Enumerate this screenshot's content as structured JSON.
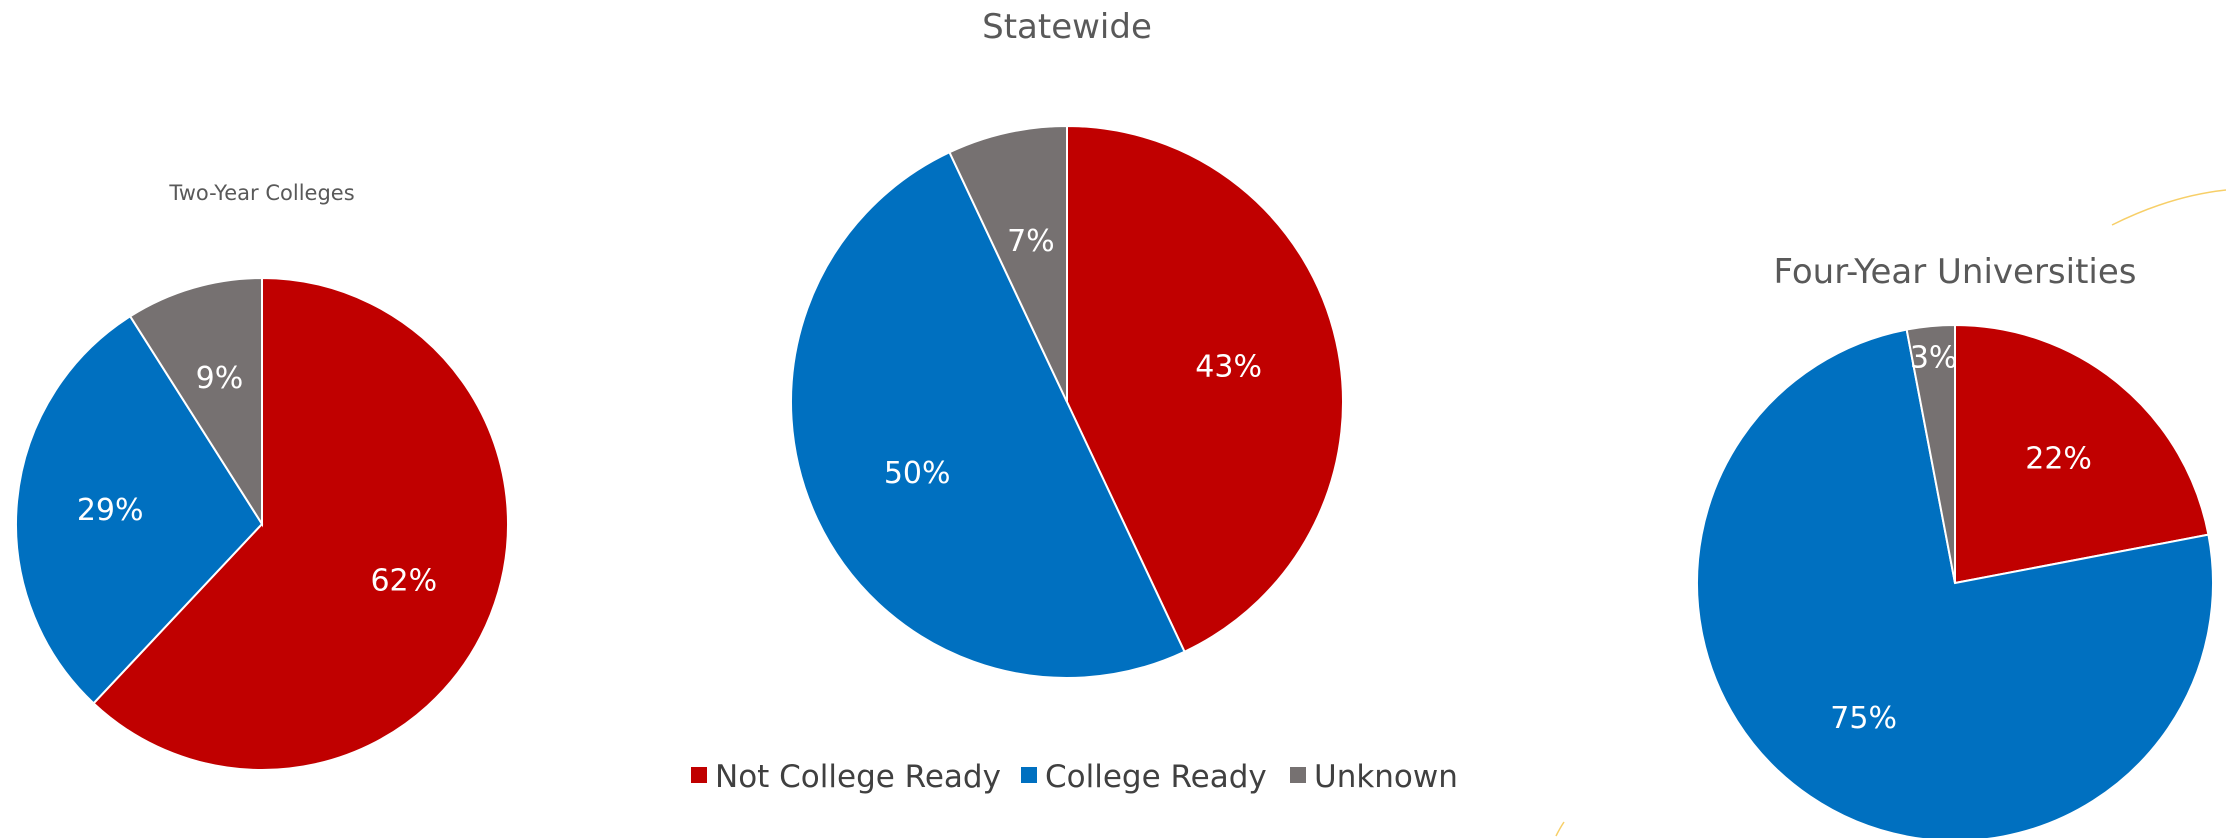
{
  "legend": [
    {
      "label": "Not College Ready",
      "color": "#c00000"
    },
    {
      "label": "College Ready",
      "color": "#0070c0"
    },
    {
      "label": "Unknown",
      "color": "#767171"
    }
  ],
  "chart_data": [
    {
      "type": "pie",
      "title": "Two-Year Colleges",
      "categories": [
        "Not College Ready",
        "College Ready",
        "Unknown"
      ],
      "values": [
        62,
        29,
        9
      ],
      "labels": [
        "62%",
        "29%",
        "9%"
      ]
    },
    {
      "type": "pie",
      "title": "Statewide",
      "categories": [
        "Not College Ready",
        "College Ready",
        "Unknown"
      ],
      "values": [
        43,
        50,
        7
      ],
      "labels": [
        "43%",
        "50%",
        "7%"
      ]
    },
    {
      "type": "pie",
      "title": "Four-Year Universities",
      "categories": [
        "Not College Ready",
        "College Ready",
        "Unknown"
      ],
      "values": [
        22,
        75,
        3
      ],
      "labels": [
        "22%",
        "75%",
        "3%"
      ]
    }
  ]
}
